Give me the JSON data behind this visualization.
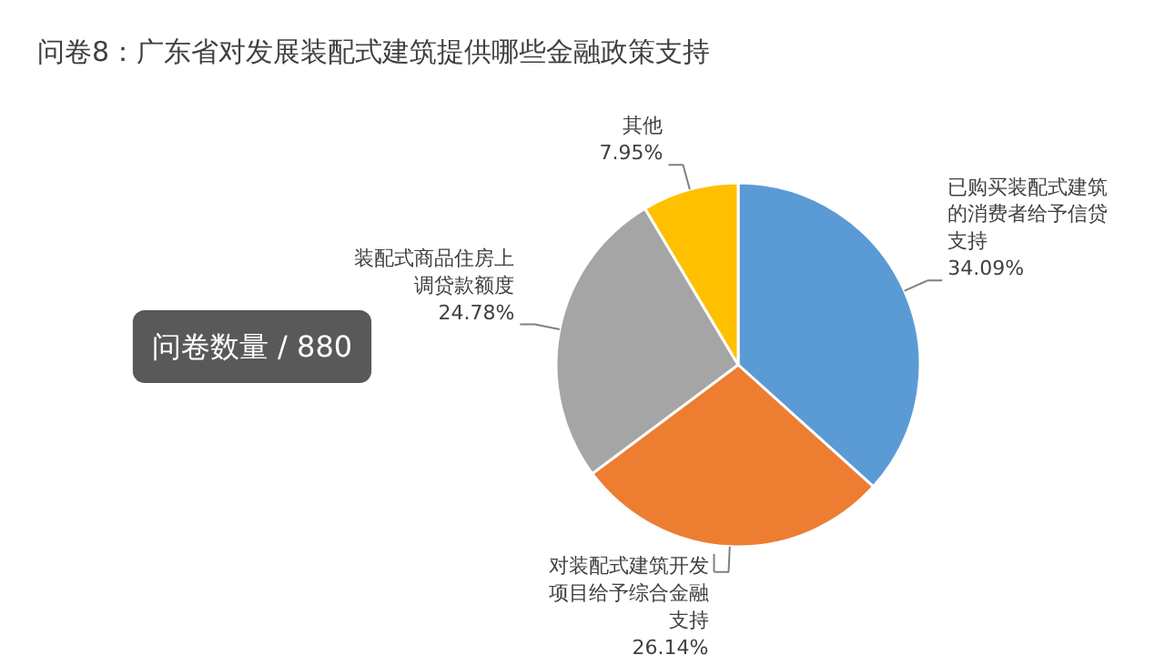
{
  "chart_data": {
    "type": "pie",
    "title": "问卷8：广东省对发展装配式建筑提供哪些金融政策支持",
    "categories": [
      "已购买装配式建筑的消费者给予信贷支持",
      "对装配式建筑开发项目给予综合金融支持",
      "装配式商品住房上调贷款额度",
      "其他"
    ],
    "values": [
      34.09,
      26.14,
      24.78,
      7.95
    ],
    "colors": [
      "#5b9bd5",
      "#ed7d31",
      "#a5a5a5",
      "#ffc000"
    ],
    "value_labels": [
      "34.09%",
      "26.14%",
      "24.78%",
      "7.95%"
    ],
    "annotations": [
      "问卷数量 / 880"
    ]
  }
}
